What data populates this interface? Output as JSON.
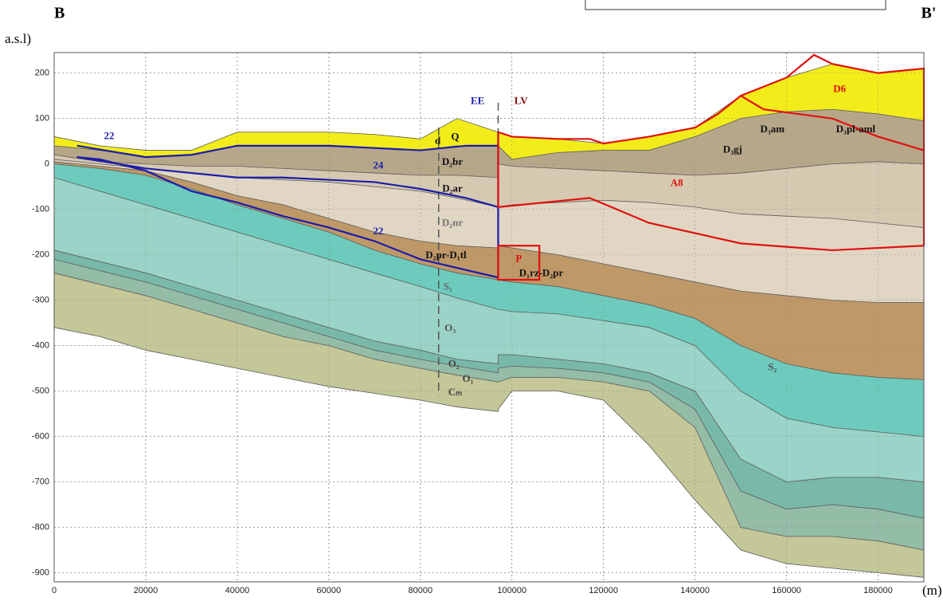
{
  "chart_data": {
    "type": "section",
    "section_start": "B",
    "section_end": "B'",
    "y_label": "a.s.l)",
    "x_label": "(m)",
    "xlim": [
      0,
      190000
    ],
    "ylim": [
      -920,
      245
    ],
    "xticks": [
      0,
      20000,
      40000,
      60000,
      80000,
      100000,
      120000,
      140000,
      160000,
      180000
    ],
    "yticks": [
      200,
      100,
      0,
      -100,
      -200,
      -300,
      -400,
      -500,
      -600,
      -700,
      -800,
      -900
    ],
    "grid": true,
    "x": [
      0,
      10000,
      20000,
      30000,
      40000,
      50000,
      60000,
      70000,
      80000,
      88000,
      97000,
      97000,
      100000,
      110000,
      120000,
      130000,
      140000,
      150000,
      160000,
      170000,
      180000,
      190000
    ],
    "surfaces": [
      {
        "values": [
          60,
          40,
          30,
          30,
          70,
          70,
          70,
          65,
          55,
          100,
          70,
          70,
          60,
          55,
          45,
          60,
          80,
          150,
          190,
          220,
          200,
          210
        ]
      },
      {
        "values": [
          40,
          30,
          15,
          20,
          40,
          40,
          40,
          35,
          30,
          40,
          40,
          40,
          10,
          25,
          30,
          30,
          60,
          100,
          115,
          120,
          110,
          95
        ]
      },
      {
        "values": [
          20,
          5,
          0,
          -5,
          -5,
          -10,
          -15,
          -20,
          -25,
          -25,
          -30,
          0,
          -5,
          -10,
          -15,
          -20,
          -25,
          -20,
          -10,
          0,
          5,
          0
        ]
      },
      {
        "values": [
          10,
          0,
          -10,
          -20,
          -30,
          -35,
          -40,
          -50,
          -60,
          -75,
          -95,
          -95,
          -90,
          -85,
          -80,
          -85,
          -95,
          -110,
          -115,
          -120,
          -130,
          -140
        ]
      },
      {
        "values": [
          5,
          -5,
          -15,
          -40,
          -70,
          -90,
          -120,
          -150,
          -170,
          -180,
          -185,
          -180,
          -185,
          -200,
          -220,
          -240,
          -260,
          -280,
          -290,
          -300,
          -305,
          -305
        ]
      },
      {
        "values": [
          0,
          -10,
          -25,
          -55,
          -90,
          -120,
          -150,
          -190,
          -220,
          -240,
          -255,
          -255,
          -260,
          -270,
          -290,
          -310,
          -340,
          -400,
          -440,
          -460,
          -470,
          -475
        ]
      },
      {
        "values": [
          -30,
          -60,
          -90,
          -120,
          -150,
          -180,
          -210,
          -240,
          -270,
          -295,
          -320,
          -320,
          -325,
          -330,
          -345,
          -360,
          -400,
          -500,
          -560,
          -580,
          -590,
          -600
        ]
      },
      {
        "values": [
          -190,
          -215,
          -240,
          -270,
          -300,
          -330,
          -360,
          -390,
          -410,
          -430,
          -440,
          -420,
          -420,
          -430,
          -440,
          -460,
          -500,
          -650,
          -700,
          -690,
          -690,
          -700
        ]
      },
      {
        "values": [
          -210,
          -235,
          -260,
          -290,
          -320,
          -350,
          -380,
          -410,
          -430,
          -445,
          -460,
          -450,
          -445,
          -450,
          -460,
          -480,
          -540,
          -720,
          -760,
          -750,
          -760,
          -780
        ]
      },
      {
        "values": [
          -240,
          -265,
          -290,
          -320,
          -350,
          -380,
          -400,
          -430,
          -450,
          -465,
          -480,
          -480,
          -470,
          -470,
          -480,
          -500,
          -580,
          -800,
          -820,
          -820,
          -830,
          -850
        ]
      },
      {
        "values": [
          -360,
          -380,
          -410,
          -430,
          -450,
          -470,
          -490,
          -505,
          -520,
          -535,
          -545,
          -540,
          -500,
          -500,
          -520,
          -620,
          -740,
          -850,
          -880,
          -890,
          -900,
          -910
        ]
      }
    ],
    "layer_colors": [
      "#f2ec1a",
      "#b7a789",
      "#d6c9b1",
      "#e0d6c3",
      "#bf9868",
      "#6dcbbd",
      "#9ad3c7",
      "#79b9a9",
      "#94bda8",
      "#c4c797"
    ],
    "outlines": [
      {
        "color": "#1c1ca8",
        "x": [
          5000,
          20000,
          30000,
          40000,
          50000,
          60000,
          70000,
          80000,
          90000,
          97000
        ],
        "y": [
          40,
          15,
          20,
          40,
          40,
          40,
          35,
          30,
          40,
          40
        ]
      },
      {
        "color": "#1c1ca8",
        "x": [
          5000,
          20000,
          30000,
          40000,
          50000,
          60000,
          70000,
          80000,
          90000,
          97000
        ],
        "y": [
          15,
          -10,
          -20,
          -30,
          -30,
          -35,
          -40,
          -55,
          -75,
          -95
        ]
      },
      {
        "color": "#1c1ca8",
        "x": [
          5000,
          10000,
          20000,
          30000,
          40000,
          50000,
          60000,
          70000,
          80000,
          97000
        ],
        "y": [
          15,
          10,
          -15,
          -60,
          -85,
          -115,
          -140,
          -170,
          -210,
          -250
        ]
      },
      {
        "color": "#1c1ca8",
        "x": [
          97000,
          97000
        ],
        "y": [
          70,
          -250
        ]
      },
      {
        "color": "#e01010",
        "x": [
          97000,
          100000,
          110000,
          117000,
          120000,
          130000,
          140000,
          145000,
          150000,
          160000,
          166000,
          170000,
          180000,
          190000,
          190000
        ],
        "y": [
          70,
          60,
          55,
          55,
          45,
          60,
          80,
          110,
          150,
          190,
          240,
          220,
          200,
          210,
          -180
        ]
      },
      {
        "color": "#e01010",
        "x": [
          97000,
          97000,
          117000,
          130000,
          150000,
          170000,
          190000
        ],
        "y": [
          70,
          -95,
          -75,
          -130,
          -175,
          -190,
          -180
        ]
      },
      {
        "color": "#e01010",
        "x": [
          150000,
          155000,
          170000,
          180000,
          190000
        ],
        "y": [
          150,
          120,
          100,
          60,
          30
        ]
      },
      {
        "color": "#e01010",
        "x": [
          97000,
          106000,
          106000,
          97000,
          97000
        ],
        "y": [
          -180,
          -180,
          -255,
          -255,
          -180
        ]
      }
    ],
    "divides": [
      {
        "x": [
          84000,
          84000
        ],
        "y": [
          80,
          -510
        ]
      },
      {
        "x": [
          97000,
          97000
        ],
        "y": [
          135,
          70
        ]
      }
    ],
    "annotations": [
      {
        "text": "22",
        "x": 12000,
        "y": 60,
        "color": "#1c1ca8"
      },
      {
        "text": "24",
        "x": 70800,
        "y": -5,
        "color": "#1c1ca8"
      },
      {
        "text": "22",
        "x": 70800,
        "y": -150,
        "color": "#1c1ca8"
      },
      {
        "text": "EE",
        "x": 92500,
        "y": 137,
        "color": "#1c1ca8"
      },
      {
        "text": "LV",
        "x": 102000,
        "y": 137,
        "color": "#8b1010"
      },
      {
        "text": "D6",
        "x": 171600,
        "y": 163,
        "color": "#e01010"
      },
      {
        "text": "A8",
        "x": 136000,
        "y": -44,
        "color": "#e01010"
      },
      {
        "text": "P",
        "x": 101500,
        "y": -210,
        "color": "#e01010"
      },
      {
        "text": "d",
        "x": 83800,
        "y": 49,
        "color": "#111111"
      },
      {
        "text": "Q",
        "x": 87600,
        "y": 58,
        "color": "#111111"
      },
      {
        "text": "D₂br",
        "x": 87000,
        "y": 3,
        "color": "#111111"
      },
      {
        "text": "D₂ar",
        "x": 87000,
        "y": -56,
        "color": "#111111"
      },
      {
        "text": "D₂nr",
        "x": 87000,
        "y": -131,
        "color": "#777777"
      },
      {
        "text": "D₂pr-D₁tl",
        "x": 85600,
        "y": -202,
        "color": "#111111"
      },
      {
        "text": "D₁rz-D₂pr",
        "x": 106400,
        "y": -242,
        "color": "#111111"
      },
      {
        "text": "S₁",
        "x": 86000,
        "y": -272,
        "color": "#666666"
      },
      {
        "text": "O₃",
        "x": 86500,
        "y": -363,
        "color": "#555555"
      },
      {
        "text": "O₂",
        "x": 87300,
        "y": -442,
        "color": "#444444"
      },
      {
        "text": "O₁",
        "x": 90400,
        "y": -474,
        "color": "#444444"
      },
      {
        "text": "Cₘ",
        "x": 87600,
        "y": -504,
        "color": "#444444"
      },
      {
        "text": "D₃am",
        "x": 156900,
        "y": 75,
        "color": "#111111"
      },
      {
        "text": "D₃pl-aml",
        "x": 175100,
        "y": 75,
        "color": "#111111"
      },
      {
        "text": "D₃gj",
        "x": 148200,
        "y": 30,
        "color": "#111111"
      },
      {
        "text": "S₂",
        "x": 156900,
        "y": -449,
        "color": "#555555"
      }
    ]
  }
}
